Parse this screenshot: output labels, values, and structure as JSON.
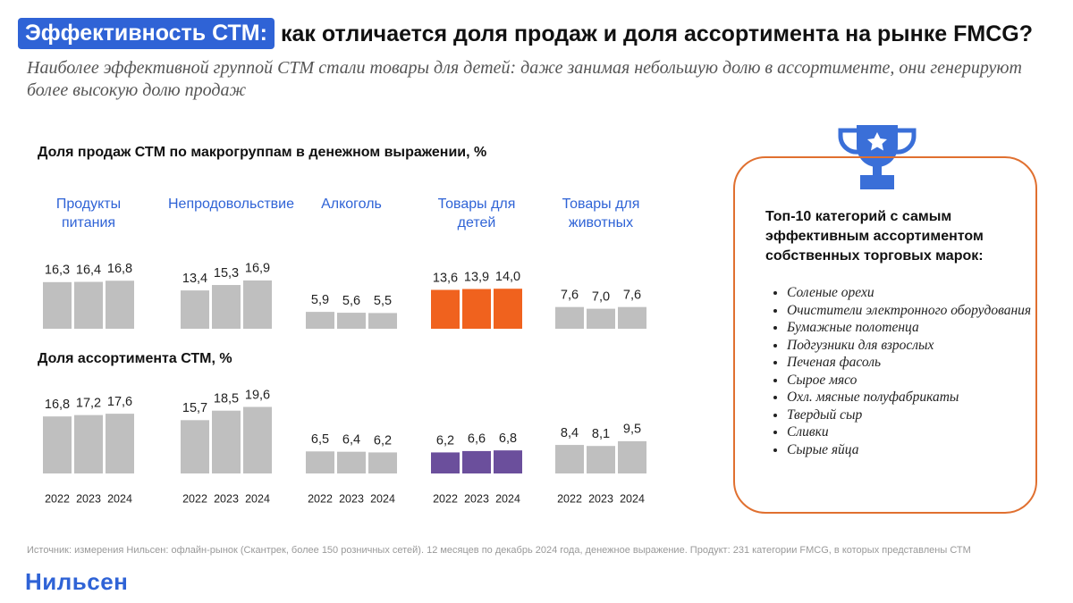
{
  "header": {
    "tag": "Эффективность СТМ:",
    "title": "как отличается доля продаж и доля ассортимента на рынке FMCG?",
    "subtitle": "Наиболее эффективной группой СТМ стали товары для детей: даже занимая небольшую долю в ассортименте, они генерируют более высокую долю продаж"
  },
  "chart_data": [
    {
      "type": "bar",
      "title": "Доля продаж СТМ по макрогруппам в денежном выражении, %",
      "categories": [
        "Продукты питания",
        "Непродовольствие",
        "Алкоголь",
        "Товары для детей",
        "Товары для животных"
      ],
      "ylim": [
        0,
        20
      ],
      "groups": [
        {
          "color": "#bfbfbf",
          "values": [
            16.3,
            16.4,
            16.8
          ],
          "value_labels": [
            "16,3",
            "16,4",
            "16,8"
          ]
        },
        {
          "color": "#bfbfbf",
          "values": [
            13.4,
            15.3,
            16.9
          ],
          "value_labels": [
            "13,4",
            "15,3",
            "16,9"
          ]
        },
        {
          "color": "#bfbfbf",
          "values": [
            5.9,
            5.6,
            5.5
          ],
          "value_labels": [
            "5,9",
            "5,6",
            "5,5"
          ]
        },
        {
          "color": "#f0621e",
          "values": [
            13.6,
            13.9,
            14.0
          ],
          "value_labels": [
            "13,6",
            "13,9",
            "14,0"
          ]
        },
        {
          "color": "#bfbfbf",
          "values": [
            7.6,
            7.0,
            7.6
          ],
          "value_labels": [
            "7,6",
            "7,0",
            "7,6"
          ]
        }
      ]
    },
    {
      "type": "bar",
      "title": "Доля ассортимента СТМ, %",
      "x": [
        "2022",
        "2023",
        "2024"
      ],
      "ylim": [
        0,
        20
      ],
      "groups": [
        {
          "color": "#bfbfbf",
          "values": [
            16.8,
            17.2,
            17.6
          ],
          "value_labels": [
            "16,8",
            "17,2",
            "17,6"
          ]
        },
        {
          "color": "#bfbfbf",
          "values": [
            15.7,
            18.5,
            19.6
          ],
          "value_labels": [
            "15,7",
            "18,5",
            "19,6"
          ]
        },
        {
          "color": "#bfbfbf",
          "values": [
            6.5,
            6.4,
            6.2
          ],
          "value_labels": [
            "6,5",
            "6,4",
            "6,2"
          ]
        },
        {
          "color": "#6b4f9c",
          "values": [
            6.2,
            6.6,
            6.8
          ],
          "value_labels": [
            "6,2",
            "6,6",
            "6,8"
          ]
        },
        {
          "color": "#bfbfbf",
          "values": [
            8.4,
            8.1,
            9.5
          ],
          "value_labels": [
            "8,4",
            "8,1",
            "9,5"
          ]
        }
      ]
    }
  ],
  "box": {
    "title": "Топ-10 категорий с самым эффективным ассортиментом собственных торговых марок:",
    "items": [
      "Соленые орехи",
      "Очистители электронного оборудования",
      "Бумажные полотенца",
      "Подгузники для взрослых",
      "Печеная фасоль",
      "Сырое мясо",
      "Охл. мясные полуфабрикаты",
      "Твердый сыр",
      "Сливки",
      "Сырые яйца"
    ]
  },
  "footer": {
    "source": "Источник: измерения Нильсен: офлайн-рынок (Скантрек, более 150 розничных сетей). 12 месяцев по декабрь 2024 года, денежное выражение. Продукт: 231 категории FMCG, в которых представлены СТМ",
    "logo": "Нильсен"
  }
}
